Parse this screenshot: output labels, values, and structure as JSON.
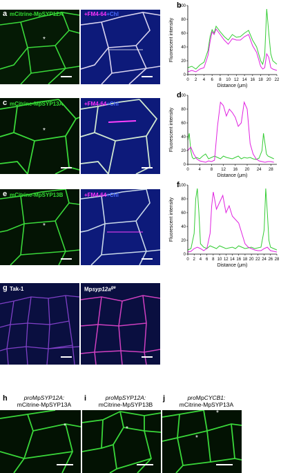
{
  "panels": {
    "a": {
      "label": "a",
      "left_title": "mCitrine-MpSYP12A",
      "right_plus": "+",
      "right_fm": "FM4-64",
      "right_chl": "+Chl",
      "star": "*"
    },
    "b": {
      "label": "b"
    },
    "c": {
      "label": "c",
      "left_title": "mCitrine-MpSYP13A",
      "right_plus": "+",
      "right_fm": "FM4-64",
      "right_chl": "+Chl",
      "star": "*"
    },
    "d": {
      "label": "d"
    },
    "e": {
      "label": "e",
      "left_title": "mCitrine-MpSYP13B",
      "right_plus": "+",
      "right_fm": "FM4-64",
      "right_chl": "+Chl",
      "star": "*"
    },
    "f": {
      "label": "f"
    },
    "g": {
      "label": "g",
      "left_title": "Tak-1",
      "right_prefix": "Mp",
      "right_italic": "syp12a",
      "right_sup": "ge"
    },
    "h": {
      "label": "h",
      "line1_pre": "pro",
      "line1_mp": "Mp",
      "line1_gene": "SYP12A:",
      "line2": "mCitrine-MpSYP13A",
      "star": "*"
    },
    "i": {
      "label": "i",
      "line1_pre": "pro",
      "line1_mp": "Mp",
      "line1_gene": "SYP12A:",
      "line2": "mCitrine-MpSYP13B",
      "star": "*"
    },
    "j": {
      "label": "j",
      "line1_pre": "pro",
      "line1_mp": "Mp",
      "line1_gene": "CYCB1:",
      "line2": "mCitrine-MpSYP13A",
      "star1": "*",
      "star2": "*"
    }
  },
  "colors": {
    "green": "#33dd33",
    "magenta": "#e020e0",
    "blue": "#1a2fb0"
  },
  "chart_data": [
    {
      "id": "b",
      "type": "line",
      "xlabel": "Distance (μm)",
      "ylabel": "Fluorescent intensity",
      "xlim": [
        0,
        22
      ],
      "ylim": [
        0,
        100
      ],
      "xticks": [
        0,
        2,
        4,
        6,
        8,
        10,
        12,
        14,
        16,
        18,
        20,
        22
      ],
      "yticks": [
        0,
        20,
        40,
        60,
        80,
        100
      ],
      "series": [
        {
          "color": "#33cc33",
          "x": [
            0,
            1,
            2,
            3,
            4,
            5,
            5.5,
            6,
            6.5,
            7,
            8,
            9,
            10,
            11,
            12,
            13,
            14,
            15,
            16,
            17,
            17.5,
            18,
            18.5,
            19,
            19.5,
            20,
            20.5,
            21,
            22
          ],
          "y": [
            10,
            12,
            8,
            14,
            18,
            35,
            55,
            65,
            60,
            70,
            62,
            55,
            50,
            58,
            54,
            55,
            60,
            64,
            50,
            40,
            30,
            20,
            15,
            28,
            95,
            60,
            30,
            20,
            15
          ]
        },
        {
          "color": "#e020e0",
          "x": [
            0,
            1,
            2,
            3,
            4,
            5,
            5.5,
            6,
            6.5,
            7,
            8,
            9,
            10,
            11,
            12,
            13,
            14,
            15,
            16,
            17,
            17.5,
            18,
            18.5,
            19,
            19.5,
            20,
            20.5,
            21,
            22
          ],
          "y": [
            4,
            6,
            4,
            8,
            10,
            28,
            48,
            62,
            58,
            66,
            58,
            50,
            44,
            52,
            50,
            50,
            55,
            58,
            42,
            32,
            22,
            12,
            8,
            10,
            30,
            25,
            10,
            8,
            6
          ]
        }
      ]
    },
    {
      "id": "d",
      "type": "line",
      "xlabel": "Distance (μm)",
      "ylabel": "Fluorescent intensity",
      "xlim": [
        0,
        30
      ],
      "ylim": [
        0,
        100
      ],
      "xticks": [
        0,
        4,
        8,
        12,
        16,
        20,
        24,
        28
      ],
      "yticks": [
        0,
        20,
        40,
        60,
        80,
        100
      ],
      "series": [
        {
          "color": "#33cc33",
          "x": [
            0,
            0.5,
            1,
            1.5,
            2,
            3,
            4,
            5,
            6,
            7,
            8,
            9,
            10,
            11,
            12,
            13,
            14,
            15,
            16,
            17,
            18,
            19,
            20,
            21,
            22,
            23,
            24,
            25,
            25.5,
            26,
            26.5,
            27,
            28,
            29
          ],
          "y": [
            35,
            45,
            20,
            10,
            8,
            10,
            8,
            12,
            15,
            8,
            10,
            12,
            10,
            8,
            12,
            10,
            9,
            8,
            10,
            12,
            8,
            10,
            9,
            10,
            8,
            7,
            9,
            20,
            45,
            30,
            15,
            12,
            10,
            8
          ]
        },
        {
          "color": "#e020e0",
          "x": [
            0,
            1,
            2,
            3,
            4,
            5,
            6,
            7,
            8,
            9,
            10,
            11,
            12,
            13,
            14,
            15,
            16,
            17,
            18,
            19,
            20,
            21,
            22,
            23,
            24,
            25,
            26,
            27,
            28,
            29
          ],
          "y": [
            20,
            25,
            15,
            8,
            5,
            4,
            3,
            5,
            4,
            6,
            55,
            90,
            85,
            70,
            80,
            75,
            68,
            55,
            60,
            90,
            80,
            30,
            15,
            8,
            5,
            4,
            3,
            4,
            4,
            3
          ]
        }
      ]
    },
    {
      "id": "f",
      "type": "line",
      "xlabel": "Distance (μm)",
      "ylabel": "Fluorescent intensity",
      "xlim": [
        0,
        28
      ],
      "ylim": [
        0,
        100
      ],
      "xticks": [
        0,
        2,
        4,
        6,
        8,
        10,
        12,
        14,
        16,
        18,
        20,
        22,
        24,
        26,
        28
      ],
      "yticks": [
        0,
        20,
        40,
        60,
        80,
        100
      ],
      "series": [
        {
          "color": "#33cc33",
          "x": [
            0,
            1,
            2,
            2.5,
            3,
            3.5,
            4,
            5,
            6,
            7,
            8,
            9,
            10,
            11,
            12,
            13,
            14,
            15,
            16,
            17,
            18,
            19,
            20,
            21,
            22,
            23,
            24,
            24.5,
            25,
            25.5,
            26,
            27,
            28
          ],
          "y": [
            6,
            8,
            30,
            80,
            95,
            60,
            15,
            10,
            8,
            12,
            10,
            8,
            12,
            10,
            8,
            9,
            10,
            8,
            12,
            10,
            8,
            9,
            10,
            8,
            9,
            10,
            35,
            95,
            60,
            20,
            10,
            8,
            6
          ]
        },
        {
          "color": "#e020e0",
          "x": [
            0,
            1,
            2,
            3,
            4,
            5,
            6,
            7,
            7.5,
            8,
            9,
            10,
            11,
            12,
            13,
            14,
            15,
            16,
            17,
            18,
            19,
            20,
            21,
            22,
            23,
            24,
            25,
            26,
            27,
            28
          ],
          "y": [
            3,
            4,
            8,
            10,
            8,
            5,
            8,
            30,
            70,
            90,
            65,
            75,
            85,
            60,
            70,
            55,
            50,
            45,
            30,
            15,
            10,
            8,
            6,
            5,
            5,
            8,
            10,
            5,
            4,
            3
          ]
        }
      ]
    }
  ]
}
